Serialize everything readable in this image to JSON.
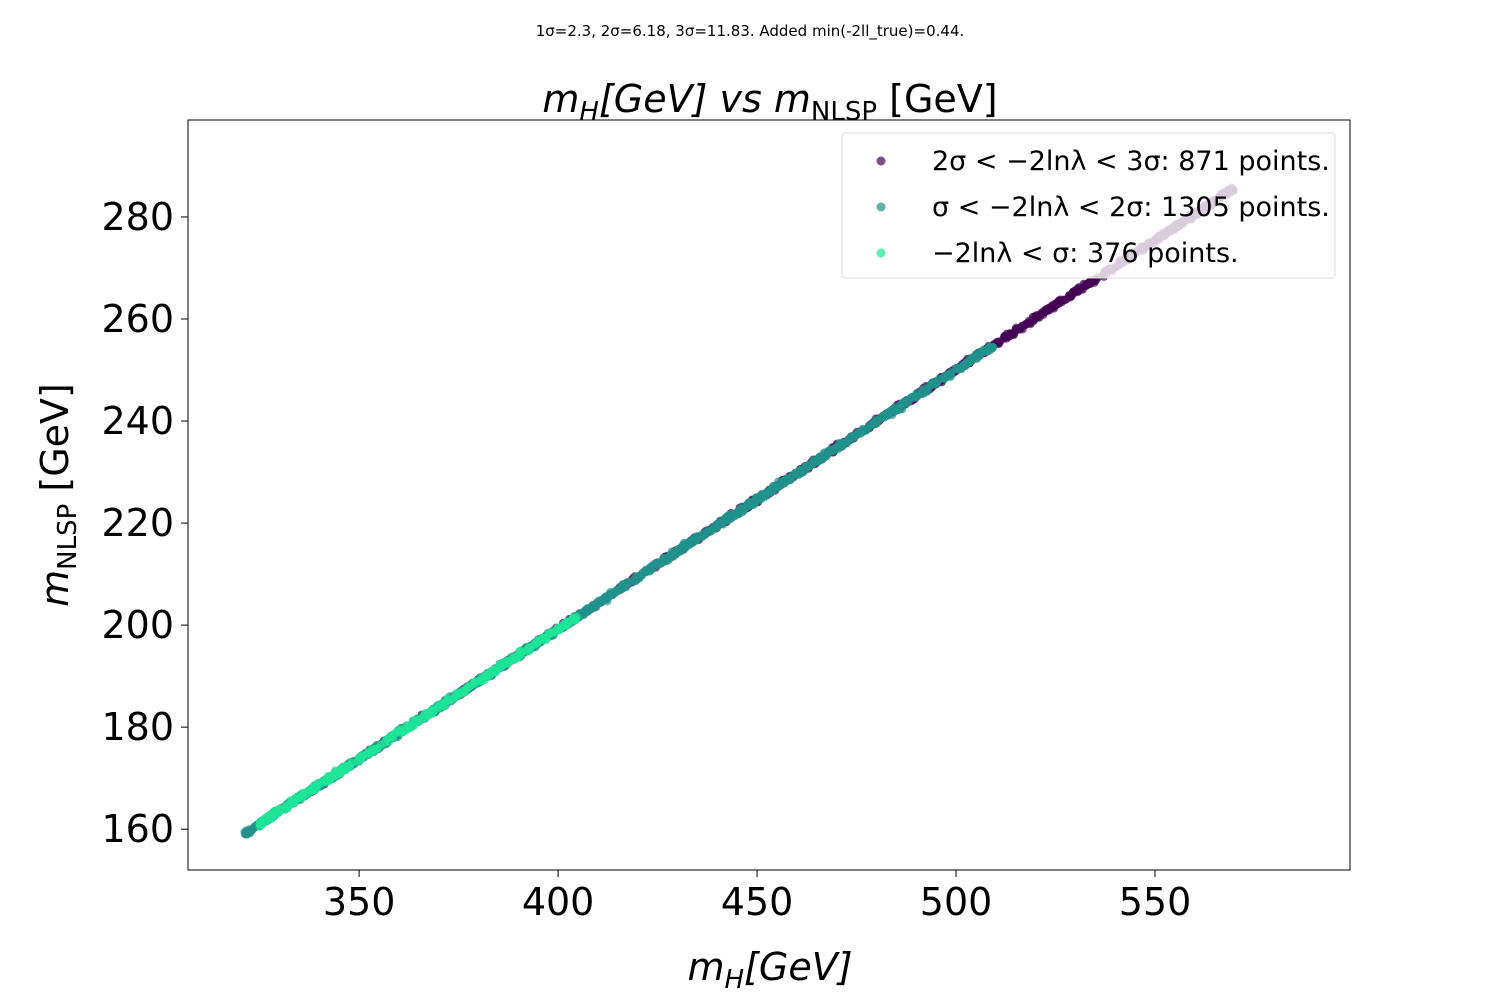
{
  "chart_data": {
    "type": "scatter",
    "suptitle": "1σ=2.3, 2σ=6.18, 3σ=11.83. Added min(-2ll_true)=0.44.",
    "title": "m_H[GeV] vs m_NLSP [GeV]",
    "title_parts": {
      "m_italic": "m",
      "h_sub": "H",
      "h_rest": "[GeV] vs ",
      "m2_italic": "m",
      "nlsp_sub": "NLSP",
      "unit": " [GeV]"
    },
    "xlabel": "m_H[GeV]",
    "xlabel_parts": {
      "m_italic": "m",
      "sub": "H",
      "rest": "[GeV]"
    },
    "ylabel": "m_NLSP [GeV]",
    "ylabel_parts": {
      "m_italic": "m",
      "sub": "NLSP",
      "rest": " [GeV]"
    },
    "xlim": [
      307,
      599
    ],
    "ylim": [
      152,
      299
    ],
    "x_ticks": [
      350,
      400,
      450,
      500,
      550
    ],
    "y_ticks": [
      160,
      180,
      200,
      220,
      240,
      260,
      280
    ],
    "grid": false,
    "legend_position": "upper right",
    "series": [
      {
        "name": "2σ < −2lnλ < 3σ: 871 points.",
        "color": "#440154",
        "points": 871,
        "x_range": [
          325,
          570
        ],
        "y_range": [
          160,
          284
        ]
      },
      {
        "name": "σ < −2lnλ < 2σ: 1305 points.",
        "color": "#21918c",
        "points": 1305,
        "x_range": [
          321,
          510
        ],
        "y_range": [
          159,
          253
        ]
      },
      {
        "name": "−2lnλ < σ: 376 points.",
        "color": "#1ee599",
        "points": 376,
        "x_range": [
          325,
          405
        ],
        "y_range": [
          161,
          201
        ]
      }
    ],
    "trend": {
      "slope": 0.5085,
      "intercept": -4.2
    }
  }
}
